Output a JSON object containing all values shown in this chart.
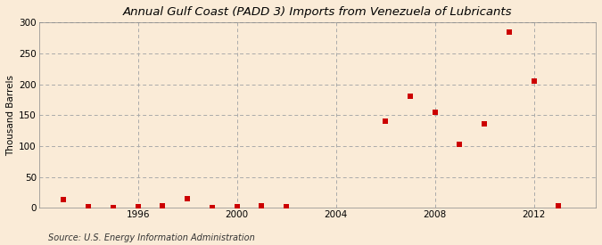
{
  "title": "Annual Gulf Coast (PADD 3) Imports from Venezuela of Lubricants",
  "ylabel": "Thousand Barrels",
  "source": "Source: U.S. Energy Information Administration",
  "background_color": "#faebd7",
  "plot_background_color": "#faebd7",
  "marker_color": "#cc0000",
  "marker_size": 4,
  "years": [
    1993,
    1994,
    1995,
    1996,
    1997,
    1998,
    1999,
    2000,
    2001,
    2002,
    2006,
    2007,
    2008,
    2009,
    2010,
    2011,
    2012,
    2013
  ],
  "values": [
    14,
    2,
    1,
    2,
    3,
    15,
    1,
    2,
    3,
    2,
    140,
    180,
    155,
    103,
    136,
    285,
    205,
    3
  ],
  "xlim": [
    1992,
    2014.5
  ],
  "ylim": [
    0,
    300
  ],
  "yticks": [
    0,
    50,
    100,
    150,
    200,
    250,
    300
  ],
  "xticks": [
    1996,
    2000,
    2004,
    2008,
    2012
  ],
  "grid_color": "#aaaaaa",
  "grid_style": "--",
  "title_fontsize": 9.5,
  "axis_fontsize": 7.5,
  "source_fontsize": 7
}
